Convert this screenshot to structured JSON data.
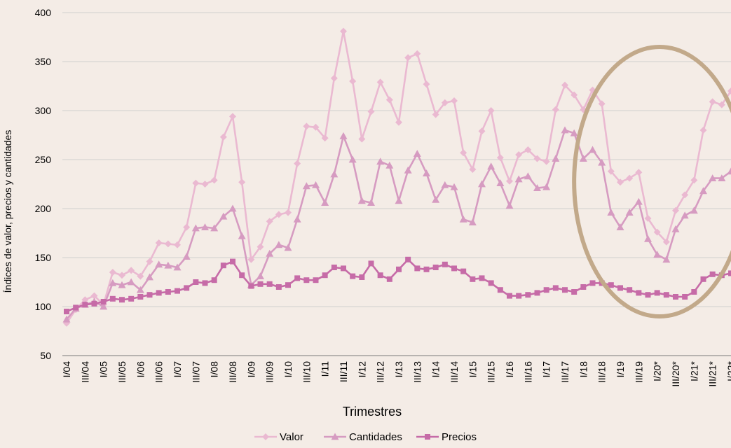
{
  "chart_data": {
    "type": "line",
    "ylabel": "Índices de valor, precios y cantidades",
    "xlabel": "Trimestres",
    "ylim": [
      50,
      400
    ],
    "yticks": [
      50,
      100,
      150,
      200,
      250,
      300,
      350,
      400
    ],
    "grid": "horizontal",
    "legend_position": "bottom",
    "x_tick_labels": [
      "I/04",
      "III/04",
      "I/05",
      "III/05",
      "I/06",
      "III/06",
      "I/07",
      "III/07",
      "I/08",
      "III/08",
      "I/09",
      "III/09",
      "I/10",
      "III/10",
      "I/11",
      "III/11",
      "I/12",
      "III/12",
      "I/13",
      "III/13",
      "I/14",
      "III/14",
      "I/15",
      "III/15",
      "I/16",
      "III/16",
      "I/17",
      "III/17",
      "I/18",
      "III/18",
      "I/19",
      "III/19",
      "I/20*",
      "III/20*",
      "I/21*",
      "III/21*",
      "I/22*"
    ],
    "categories": [
      "I/04",
      "II/04",
      "III/04",
      "IV/04",
      "I/05",
      "II/05",
      "III/05",
      "IV/05",
      "I/06",
      "II/06",
      "III/06",
      "IV/06",
      "I/07",
      "II/07",
      "III/07",
      "IV/07",
      "I/08",
      "II/08",
      "III/08",
      "IV/08",
      "I/09",
      "II/09",
      "III/09",
      "IV/09",
      "I/10",
      "II/10",
      "III/10",
      "IV/10",
      "I/11",
      "II/11",
      "III/11",
      "IV/11",
      "I/12",
      "II/12",
      "III/12",
      "IV/12",
      "I/13",
      "II/13",
      "III/13",
      "IV/13",
      "I/14",
      "II/14",
      "III/14",
      "IV/14",
      "I/15",
      "II/15",
      "III/15",
      "IV/15",
      "I/16",
      "II/16",
      "III/16",
      "IV/16",
      "I/17",
      "II/17",
      "III/17",
      "IV/17",
      "I/18",
      "II/18",
      "III/18",
      "IV/18",
      "I/19",
      "II/19",
      "III/19",
      "IV/19",
      "I/20*",
      "II/20*",
      "III/20*",
      "IV/20*",
      "I/21*",
      "II/21*",
      "III/21*",
      "IV/21*",
      "I/22*"
    ],
    "series": [
      {
        "name": "Valor",
        "color": "#eab9d1",
        "marker": "diamond",
        "values": [
          83,
          97,
          107,
          111,
          102,
          135,
          132,
          137,
          131,
          146,
          165,
          164,
          163,
          181,
          226,
          225,
          229,
          273,
          294,
          227,
          148,
          161,
          187,
          194,
          196,
          246,
          284,
          283,
          272,
          333,
          381,
          330,
          271,
          299,
          329,
          311,
          288,
          354,
          358,
          327,
          296,
          308,
          310,
          257,
          240,
          279,
          300,
          252,
          228,
          255,
          260,
          251,
          248,
          301,
          326,
          316,
          301,
          321,
          307,
          238,
          227,
          231,
          237,
          190,
          176,
          166,
          198,
          214,
          229,
          280,
          309,
          306,
          320
        ]
      },
      {
        "name": "Cantidades",
        "color": "#d69bc1",
        "marker": "triangle",
        "values": [
          87,
          98,
          102,
          105,
          100,
          124,
          122,
          125,
          117,
          130,
          143,
          142,
          140,
          151,
          180,
          181,
          180,
          192,
          200,
          172,
          122,
          131,
          154,
          163,
          160,
          189,
          223,
          224,
          206,
          235,
          274,
          250,
          208,
          206,
          248,
          244,
          208,
          239,
          256,
          236,
          209,
          224,
          222,
          189,
          186,
          225,
          243,
          226,
          203,
          230,
          233,
          221,
          222,
          251,
          280,
          277,
          251,
          260,
          247,
          196,
          181,
          196,
          207,
          169,
          153,
          148,
          179,
          193,
          198,
          218,
          231,
          231,
          238
        ]
      },
      {
        "name": "Precios",
        "color": "#c66ba7",
        "marker": "square",
        "values": [
          95,
          99,
          102,
          103,
          105,
          108,
          107,
          108,
          110,
          112,
          114,
          115,
          116,
          119,
          125,
          124,
          127,
          142,
          146,
          132,
          121,
          123,
          123,
          120,
          122,
          129,
          127,
          127,
          132,
          140,
          139,
          131,
          130,
          144,
          132,
          128,
          138,
          148,
          139,
          138,
          140,
          143,
          139,
          136,
          128,
          129,
          124,
          117,
          111,
          111,
          112,
          114,
          117,
          119,
          117,
          115,
          120,
          124,
          124,
          122,
          119,
          117,
          114,
          112,
          114,
          112,
          110,
          110,
          115,
          128,
          133,
          132,
          134
        ]
      }
    ],
    "annotation": {
      "shape": "ellipse",
      "color": "#c2a98a",
      "x_range": [
        "IV/17",
        "I/22*"
      ],
      "y_range": [
        90,
        365
      ]
    }
  }
}
